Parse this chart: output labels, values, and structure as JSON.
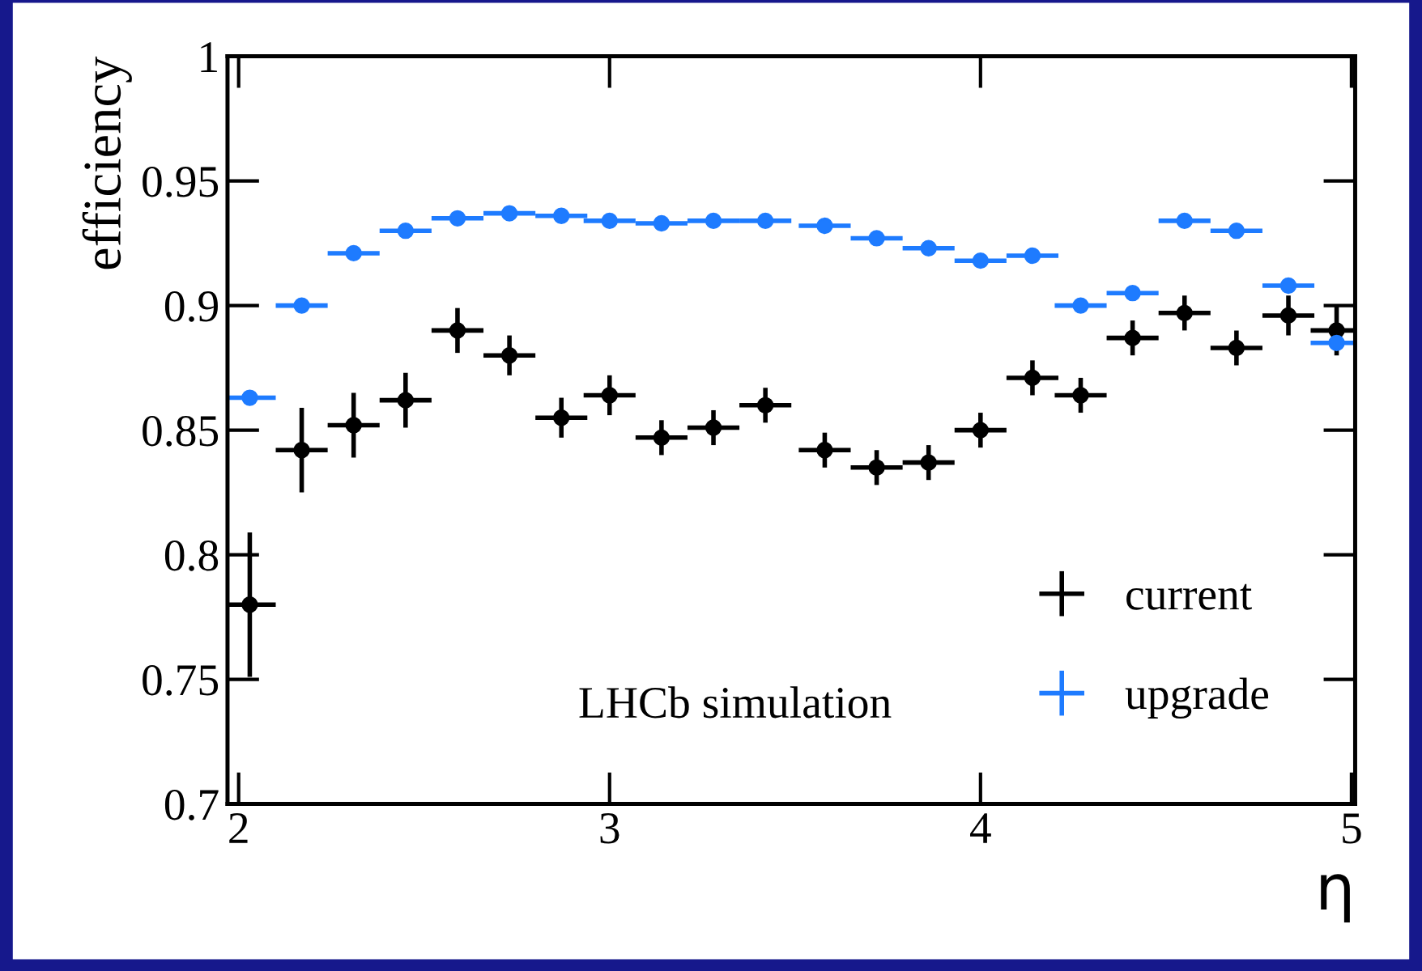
{
  "chart_data": {
    "type": "scatter",
    "xlabel": "η",
    "ylabel": "efficiency",
    "annotations": [
      "LHCb simulation"
    ],
    "xlim": [
      1.97,
      5.01
    ],
    "xticks": [
      2,
      3,
      4,
      5
    ],
    "ylim": [
      0.7,
      1
    ],
    "yticks": [
      0.7,
      0.75,
      0.8,
      0.85,
      0.9,
      0.95,
      1
    ],
    "marker": "circle",
    "legend": "bottom right",
    "grid": false,
    "x": [
      2.03,
      2.17,
      2.31,
      2.45,
      2.59,
      2.73,
      2.87,
      3.0,
      3.14,
      3.28,
      3.42,
      3.58,
      3.72,
      3.86,
      4.0,
      4.14,
      4.27,
      4.41,
      4.55,
      4.69,
      4.83,
      4.96
    ],
    "series": [
      {
        "name": "current",
        "color": "#000000",
        "values": [
          0.78,
          0.842,
          0.852,
          0.862,
          0.89,
          0.88,
          0.855,
          0.864,
          0.847,
          0.851,
          0.86,
          0.842,
          0.835,
          0.837,
          0.85,
          0.871,
          0.864,
          0.887,
          0.897,
          0.883,
          0.896,
          0.89
        ],
        "errors": [
          0.029,
          0.017,
          0.013,
          0.011,
          0.009,
          0.008,
          0.008,
          0.008,
          0.007,
          0.007,
          0.007,
          0.007,
          0.007,
          0.007,
          0.007,
          0.007,
          0.007,
          0.007,
          0.007,
          0.007,
          0.008,
          0.01
        ],
        "xerrors": [
          0.07,
          0.07,
          0.07,
          0.07,
          0.07,
          0.07,
          0.07,
          0.07,
          0.07,
          0.07,
          0.07,
          0.07,
          0.07,
          0.07,
          0.07,
          0.07,
          0.07,
          0.07,
          0.07,
          0.07,
          0.07,
          0.07
        ]
      },
      {
        "name": "upgrade",
        "color": "#1e7bff",
        "values": [
          0.863,
          0.9,
          0.921,
          0.93,
          0.935,
          0.937,
          0.936,
          0.934,
          0.933,
          0.934,
          0.934,
          0.932,
          0.927,
          0.923,
          0.918,
          0.92,
          0.9,
          0.905,
          0.934,
          0.93,
          0.908,
          0.885
        ],
        "errors": [
          0.002,
          0.002,
          0.002,
          0.002,
          0.002,
          0.002,
          0.002,
          0.002,
          0.002,
          0.002,
          0.002,
          0.002,
          0.002,
          0.002,
          0.002,
          0.002,
          0.002,
          0.002,
          0.002,
          0.002,
          0.002,
          0.002
        ],
        "xerrors": [
          0.07,
          0.07,
          0.07,
          0.07,
          0.07,
          0.07,
          0.07,
          0.07,
          0.07,
          0.07,
          0.07,
          0.07,
          0.07,
          0.07,
          0.07,
          0.07,
          0.07,
          0.07,
          0.07,
          0.07,
          0.07,
          0.07
        ]
      }
    ]
  }
}
